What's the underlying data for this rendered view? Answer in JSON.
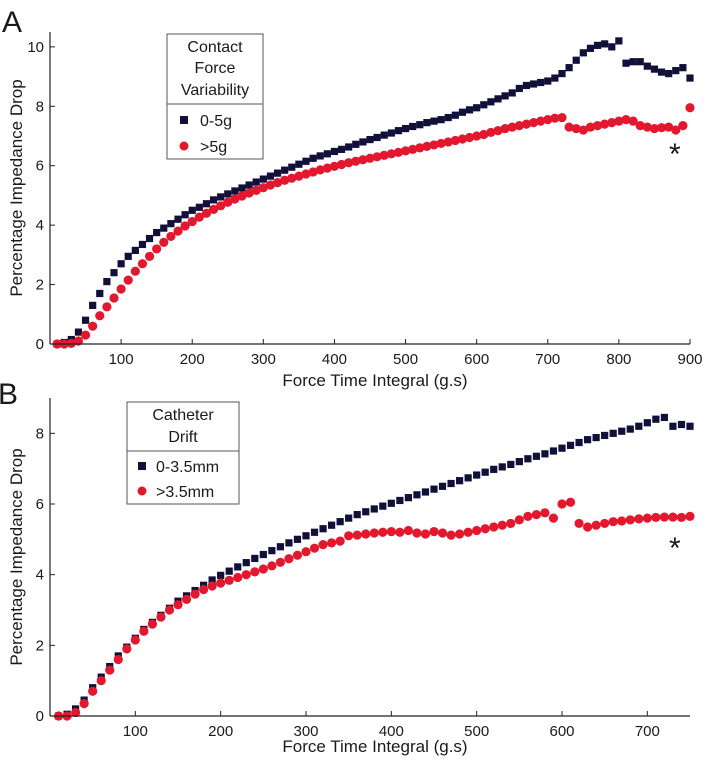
{
  "colors": {
    "series_a": "#10103a",
    "series_b": "#e3172e",
    "axis": "#222222"
  },
  "chart_data": [
    {
      "panel_label": "A",
      "type": "scatter",
      "xlabel": "Force Time Integral (g.s)",
      "ylabel": "Percentage Impedance Drop",
      "xlim": [
        0,
        900
      ],
      "ylim": [
        0,
        10.5
      ],
      "xticks": [
        100,
        200,
        300,
        400,
        500,
        600,
        700,
        800,
        900
      ],
      "yticks": [
        0,
        2,
        4,
        6,
        8,
        10
      ],
      "legend": {
        "title": [
          "Contact",
          "Force",
          "Variability"
        ],
        "position": "top-left"
      },
      "annotation": "*",
      "series": [
        {
          "name": "0-5g",
          "marker": "square",
          "color": "#10103a",
          "x": [
            10,
            20,
            30,
            40,
            50,
            60,
            70,
            80,
            90,
            100,
            110,
            120,
            130,
            140,
            150,
            160,
            170,
            180,
            190,
            200,
            210,
            220,
            230,
            240,
            250,
            260,
            270,
            280,
            290,
            300,
            310,
            320,
            330,
            340,
            350,
            360,
            370,
            380,
            390,
            400,
            410,
            420,
            430,
            440,
            450,
            460,
            470,
            480,
            490,
            500,
            510,
            520,
            530,
            540,
            550,
            560,
            570,
            580,
            590,
            600,
            610,
            620,
            630,
            640,
            650,
            660,
            670,
            680,
            690,
            700,
            710,
            720,
            730,
            740,
            750,
            760,
            770,
            780,
            790,
            800,
            810,
            820,
            830,
            840,
            850,
            860,
            870,
            880,
            890,
            900
          ],
          "y": [
            0.0,
            0.05,
            0.15,
            0.4,
            0.8,
            1.3,
            1.7,
            2.1,
            2.4,
            2.7,
            2.95,
            3.15,
            3.35,
            3.55,
            3.75,
            3.9,
            4.05,
            4.2,
            4.35,
            4.5,
            4.6,
            4.72,
            4.85,
            4.95,
            5.05,
            5.15,
            5.25,
            5.35,
            5.45,
            5.55,
            5.65,
            5.75,
            5.85,
            5.95,
            6.05,
            6.15,
            6.25,
            6.33,
            6.4,
            6.48,
            6.55,
            6.63,
            6.72,
            6.8,
            6.88,
            6.95,
            7.03,
            7.1,
            7.18,
            7.25,
            7.32,
            7.38,
            7.45,
            7.5,
            7.55,
            7.62,
            7.7,
            7.8,
            7.88,
            7.95,
            8.05,
            8.15,
            8.25,
            8.35,
            8.45,
            8.6,
            8.7,
            8.75,
            8.8,
            8.85,
            8.95,
            9.1,
            9.3,
            9.55,
            9.8,
            9.95,
            10.05,
            10.1,
            10.0,
            10.2,
            9.45,
            9.5,
            9.5,
            9.35,
            9.25,
            9.15,
            9.1,
            9.2,
            9.3,
            8.95
          ]
        },
        {
          "name": ">5g",
          "marker": "circle",
          "color": "#e3172e",
          "x": [
            10,
            20,
            30,
            40,
            50,
            60,
            70,
            80,
            90,
            100,
            110,
            120,
            130,
            140,
            150,
            160,
            170,
            180,
            190,
            200,
            210,
            220,
            230,
            240,
            250,
            260,
            270,
            280,
            290,
            300,
            310,
            320,
            330,
            340,
            350,
            360,
            370,
            380,
            390,
            400,
            410,
            420,
            430,
            440,
            450,
            460,
            470,
            480,
            490,
            500,
            510,
            520,
            530,
            540,
            550,
            560,
            570,
            580,
            590,
            600,
            610,
            620,
            630,
            640,
            650,
            660,
            670,
            680,
            690,
            700,
            710,
            720,
            730,
            740,
            750,
            760,
            770,
            780,
            790,
            800,
            810,
            820,
            830,
            840,
            850,
            860,
            870,
            880,
            890,
            900
          ],
          "y": [
            0.0,
            0.0,
            0.02,
            0.1,
            0.3,
            0.6,
            0.95,
            1.25,
            1.55,
            1.85,
            2.15,
            2.45,
            2.7,
            2.95,
            3.2,
            3.42,
            3.62,
            3.8,
            3.97,
            4.12,
            4.27,
            4.4,
            4.53,
            4.65,
            4.77,
            4.88,
            4.98,
            5.08,
            5.17,
            5.26,
            5.35,
            5.43,
            5.51,
            5.58,
            5.65,
            5.72,
            5.79,
            5.86,
            5.92,
            5.98,
            6.04,
            6.1,
            6.15,
            6.2,
            6.25,
            6.3,
            6.35,
            6.4,
            6.45,
            6.5,
            6.55,
            6.6,
            6.65,
            6.7,
            6.75,
            6.8,
            6.85,
            6.9,
            6.95,
            7.0,
            7.05,
            7.12,
            7.18,
            7.25,
            7.3,
            7.35,
            7.4,
            7.45,
            7.5,
            7.55,
            7.6,
            7.62,
            7.3,
            7.25,
            7.2,
            7.3,
            7.35,
            7.4,
            7.45,
            7.5,
            7.55,
            7.5,
            7.35,
            7.3,
            7.25,
            7.28,
            7.3,
            7.2,
            7.35,
            7.95
          ]
        }
      ]
    },
    {
      "panel_label": "B",
      "type": "scatter",
      "xlabel": "Force Time Integral (g.s)",
      "ylabel": "Percentage Impedance Drop",
      "xlim": [
        0,
        750
      ],
      "ylim": [
        0,
        9
      ],
      "xticks": [
        100,
        200,
        300,
        400,
        500,
        600,
        700
      ],
      "yticks": [
        0,
        2,
        4,
        6,
        8
      ],
      "legend": {
        "title": [
          "Catheter",
          "Drift"
        ],
        "position": "top-left"
      },
      "annotation": "*",
      "series": [
        {
          "name": "0-3.5mm",
          "marker": "square",
          "color": "#10103a",
          "x": [
            10,
            20,
            30,
            40,
            50,
            60,
            70,
            80,
            90,
            100,
            110,
            120,
            130,
            140,
            150,
            160,
            170,
            180,
            190,
            200,
            210,
            220,
            230,
            240,
            250,
            260,
            270,
            280,
            290,
            300,
            310,
            320,
            330,
            340,
            350,
            360,
            370,
            380,
            390,
            400,
            410,
            420,
            430,
            440,
            450,
            460,
            470,
            480,
            490,
            500,
            510,
            520,
            530,
            540,
            550,
            560,
            570,
            580,
            590,
            600,
            610,
            620,
            630,
            640,
            650,
            660,
            670,
            680,
            690,
            700,
            710,
            720,
            730,
            740,
            750
          ],
          "y": [
            0.0,
            0.05,
            0.2,
            0.45,
            0.8,
            1.1,
            1.4,
            1.7,
            1.95,
            2.2,
            2.45,
            2.65,
            2.85,
            3.05,
            3.25,
            3.4,
            3.55,
            3.7,
            3.85,
            3.98,
            4.1,
            4.22,
            4.34,
            4.46,
            4.57,
            4.68,
            4.79,
            4.9,
            5.0,
            5.1,
            5.2,
            5.3,
            5.4,
            5.5,
            5.6,
            5.7,
            5.78,
            5.86,
            5.94,
            6.02,
            6.1,
            6.18,
            6.26,
            6.34,
            6.42,
            6.5,
            6.58,
            6.66,
            6.74,
            6.82,
            6.9,
            6.98,
            7.05,
            7.12,
            7.2,
            7.28,
            7.35,
            7.42,
            7.5,
            7.58,
            7.66,
            7.74,
            7.82,
            7.88,
            7.94,
            8.0,
            8.06,
            8.12,
            8.2,
            8.3,
            8.4,
            8.45,
            8.2,
            8.25,
            8.2
          ]
        },
        {
          "name": ">3.5mm",
          "marker": "circle",
          "color": "#e3172e",
          "x": [
            10,
            20,
            30,
            40,
            50,
            60,
            70,
            80,
            90,
            100,
            110,
            120,
            130,
            140,
            150,
            160,
            170,
            180,
            190,
            200,
            210,
            220,
            230,
            240,
            250,
            260,
            270,
            280,
            290,
            300,
            310,
            320,
            330,
            340,
            350,
            360,
            370,
            380,
            390,
            400,
            410,
            420,
            430,
            440,
            450,
            460,
            470,
            480,
            490,
            500,
            510,
            520,
            530,
            540,
            550,
            560,
            570,
            580,
            590,
            600,
            610,
            620,
            630,
            640,
            650,
            660,
            670,
            680,
            690,
            700,
            710,
            720,
            730,
            740,
            750
          ],
          "y": [
            0.0,
            0.0,
            0.1,
            0.35,
            0.7,
            1.0,
            1.3,
            1.6,
            1.9,
            2.15,
            2.4,
            2.6,
            2.8,
            3.0,
            3.15,
            3.3,
            3.45,
            3.58,
            3.68,
            3.76,
            3.84,
            3.92,
            4.0,
            4.08,
            4.16,
            4.25,
            4.35,
            4.45,
            4.55,
            4.65,
            4.75,
            4.85,
            4.9,
            4.95,
            5.1,
            5.12,
            5.15,
            5.18,
            5.2,
            5.22,
            5.2,
            5.25,
            5.18,
            5.15,
            5.22,
            5.18,
            5.12,
            5.15,
            5.2,
            5.25,
            5.3,
            5.35,
            5.4,
            5.45,
            5.55,
            5.65,
            5.7,
            5.75,
            5.6,
            6.0,
            6.05,
            5.45,
            5.35,
            5.4,
            5.45,
            5.5,
            5.52,
            5.55,
            5.58,
            5.6,
            5.62,
            5.63,
            5.63,
            5.62,
            5.65
          ]
        }
      ]
    }
  ]
}
